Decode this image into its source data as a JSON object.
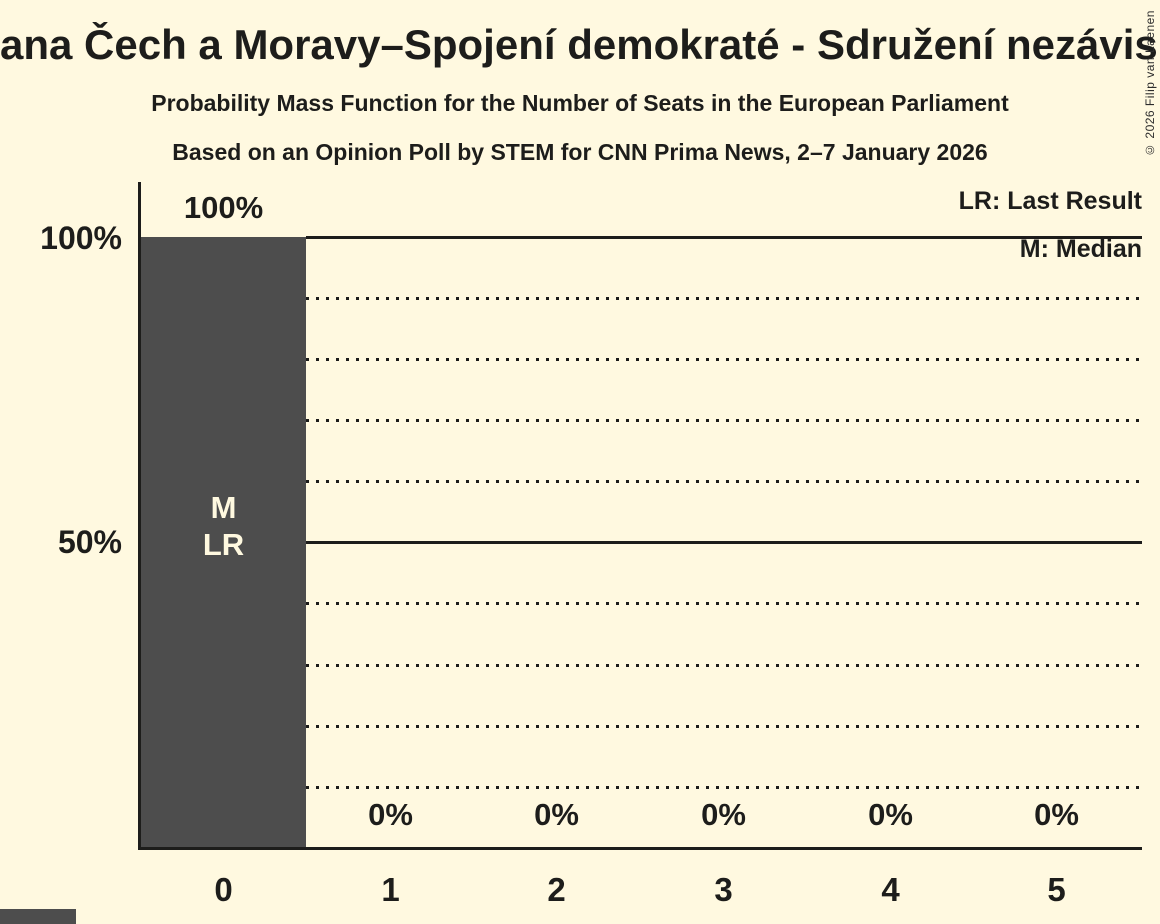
{
  "chart_data": {
    "type": "bar",
    "title_visible": "ana Čech a Moravy–Spojení demokraté - Sdružení nezávisl",
    "subtitle1": "Probability Mass Function for the Number of Seats in the European Parliament",
    "subtitle2": "Based on an Opinion Poll by STEM for CNN Prima News, 2–7 January 2026",
    "categories": [
      "0",
      "1",
      "2",
      "3",
      "4",
      "5"
    ],
    "values": [
      100,
      0,
      0,
      0,
      0,
      0
    ],
    "bar_value_labels": [
      "100%",
      "0%",
      "0%",
      "0%",
      "0%",
      "0%"
    ],
    "xlabel": "",
    "ylabel": "",
    "ylim": [
      0,
      100
    ],
    "ylabel_ticks": [
      "100%",
      "50%"
    ],
    "grid": "solid lines at 100% and 50%, dotted lines at 90/80/70/60/40/30/20/10%",
    "legend_position": "top-right",
    "legend": [
      "LR: Last Result",
      "M: Median"
    ],
    "annotations": {
      "median_marker": "M",
      "last_result_marker": "LR"
    },
    "median_seats": 0,
    "last_result_seats": 0,
    "colors": {
      "background": "#FFF9E0",
      "bar": "#4D4D4D",
      "text": "#1D1D1B",
      "bar_annotation_text": "#FFF9E0"
    }
  },
  "copyright": "© 2026 Filip van Laenen"
}
